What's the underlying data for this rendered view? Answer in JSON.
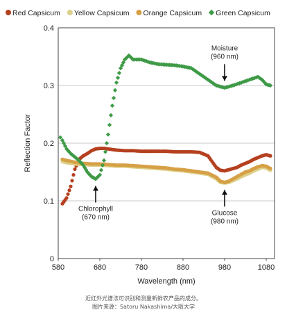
{
  "chart_data": {
    "type": "scatter",
    "xlabel": "Wavelength (nm)",
    "ylabel": "Reflection Factor",
    "xlim": [
      580,
      1100
    ],
    "ylim": [
      0,
      0.4
    ],
    "xticks": [
      580,
      680,
      780,
      880,
      980,
      1080
    ],
    "yticks": [
      0,
      0.1,
      0.2,
      0.3,
      0.4
    ],
    "grid": true,
    "legend": "top",
    "series": [
      {
        "name": "Red Capsicum",
        "color": "#b5401f",
        "x": [
          590,
          600,
          610,
          620,
          630,
          640,
          650,
          660,
          670,
          680,
          690,
          700,
          720,
          740,
          760,
          780,
          800,
          820,
          840,
          860,
          880,
          900,
          920,
          940,
          950,
          960,
          970,
          980,
          990,
          1000,
          1010,
          1020,
          1030,
          1040,
          1050,
          1060,
          1070,
          1080,
          1090
        ],
        "values": [
          0.095,
          0.105,
          0.125,
          0.155,
          0.172,
          0.178,
          0.182,
          0.187,
          0.19,
          0.191,
          0.191,
          0.19,
          0.188,
          0.187,
          0.187,
          0.186,
          0.186,
          0.186,
          0.186,
          0.185,
          0.185,
          0.185,
          0.184,
          0.178,
          0.168,
          0.158,
          0.153,
          0.152,
          0.154,
          0.156,
          0.158,
          0.162,
          0.165,
          0.168,
          0.172,
          0.175,
          0.178,
          0.18,
          0.178
        ]
      },
      {
        "name": "Yellow Capsicum",
        "color": "#ddd088",
        "x": [
          590,
          600,
          620,
          640,
          660,
          680,
          700,
          720,
          740,
          760,
          780,
          800,
          820,
          840,
          860,
          880,
          900,
          920,
          940,
          960,
          970,
          980,
          990,
          1000,
          1010,
          1020,
          1030,
          1040,
          1050,
          1060,
          1070,
          1080,
          1090
        ],
        "values": [
          0.168,
          0.166,
          0.164,
          0.163,
          0.162,
          0.162,
          0.161,
          0.16,
          0.16,
          0.159,
          0.158,
          0.157,
          0.156,
          0.155,
          0.153,
          0.152,
          0.15,
          0.148,
          0.146,
          0.138,
          0.132,
          0.131,
          0.132,
          0.135,
          0.138,
          0.142,
          0.145,
          0.148,
          0.152,
          0.155,
          0.158,
          0.157,
          0.153
        ]
      },
      {
        "name": "Orange Capsicum",
        "color": "#d6a046",
        "x": [
          590,
          600,
          620,
          640,
          660,
          680,
          700,
          720,
          740,
          760,
          780,
          800,
          820,
          840,
          860,
          880,
          900,
          920,
          940,
          960,
          970,
          980,
          990,
          1000,
          1010,
          1020,
          1030,
          1040,
          1050,
          1060,
          1070,
          1080,
          1090
        ],
        "values": [
          0.172,
          0.17,
          0.167,
          0.165,
          0.164,
          0.164,
          0.163,
          0.162,
          0.162,
          0.161,
          0.16,
          0.159,
          0.158,
          0.157,
          0.155,
          0.154,
          0.152,
          0.15,
          0.148,
          0.141,
          0.134,
          0.132,
          0.134,
          0.138,
          0.142,
          0.146,
          0.15,
          0.152,
          0.156,
          0.159,
          0.161,
          0.16,
          0.156
        ]
      },
      {
        "name": "Green Capsicum",
        "color": "#3e9a46",
        "x": [
          585,
          590,
          600,
          610,
          620,
          630,
          640,
          650,
          660,
          670,
          680,
          690,
          700,
          710,
          720,
          730,
          740,
          750,
          760,
          780,
          800,
          820,
          840,
          860,
          880,
          900,
          920,
          940,
          960,
          980,
          1000,
          1020,
          1040,
          1060,
          1070,
          1080,
          1090
        ],
        "values": [
          0.21,
          0.205,
          0.19,
          0.182,
          0.176,
          0.17,
          0.162,
          0.15,
          0.142,
          0.138,
          0.145,
          0.17,
          0.215,
          0.265,
          0.305,
          0.33,
          0.345,
          0.352,
          0.345,
          0.345,
          0.34,
          0.337,
          0.336,
          0.335,
          0.333,
          0.33,
          0.32,
          0.31,
          0.3,
          0.296,
          0.3,
          0.305,
          0.31,
          0.315,
          0.31,
          0.302,
          0.3
        ]
      }
    ],
    "annotations": [
      {
        "lines": [
          "Moisture",
          "(960 nm)"
        ],
        "x": 980,
        "y": 0.296,
        "arrow": "down"
      },
      {
        "lines": [
          "Chlorophyll",
          "(670 nm)"
        ],
        "x": 670,
        "y": 0.138,
        "arrow": "up"
      },
      {
        "lines": [
          "Glucose",
          "(980 nm)"
        ],
        "x": 980,
        "y": 0.131,
        "arrow": "up"
      }
    ]
  },
  "caption": {
    "line1": "近红外光谱法可识别和测量新鲜农产品的成分。",
    "line2": "图片来源：Satoru Nakashima/大阪大学"
  }
}
